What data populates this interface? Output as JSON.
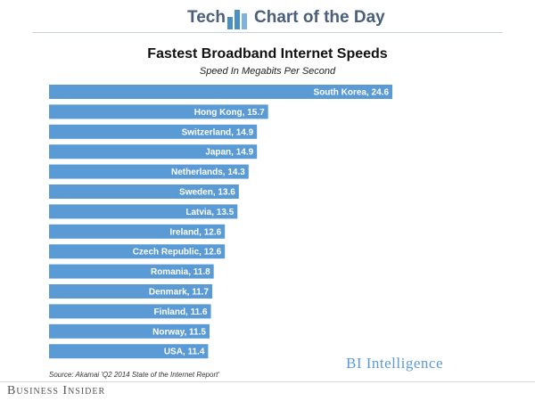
{
  "header": {
    "section": "Tech",
    "feature": "Chart of the Day",
    "accent_color": "#4a8fc4",
    "logo_icon": "bar-chart-icon"
  },
  "source_note": "Source: Akamai 'Q2 2014 State of the Internet Report'",
  "branding": {
    "bi_intelligence": "BI Intelligence",
    "business_insider": "Business Insider"
  },
  "chart_data": {
    "type": "bar",
    "orientation": "horizontal",
    "title": "Fastest Broadband Internet Speeds",
    "subtitle": "Speed In Megabits Per Second",
    "categories": [
      "South Korea",
      "Hong Kong",
      "Switzerland",
      "Japan",
      "Netherlands",
      "Sweden",
      "Latvia",
      "Ireland",
      "Czech Republic",
      "Romania",
      "Denmark",
      "Finland",
      "Norway",
      "USA"
    ],
    "values": [
      24.6,
      15.7,
      14.9,
      14.9,
      14.3,
      13.6,
      13.5,
      12.6,
      12.6,
      11.8,
      11.7,
      11.6,
      11.5,
      11.4
    ],
    "labels": [
      "South Korea, 24.6",
      "Hong Kong, 15.7",
      "Switzerland, 14.9",
      "Japan, 14.9",
      "Netherlands, 14.3",
      "Sweden, 13.6",
      "Latvia, 13.5",
      "Ireland, 12.6",
      "Czech Republic, 12.6",
      "Romania, 11.8",
      "Denmark, 11.7",
      "Finland, 11.6",
      "Norway, 11.5",
      "USA, 11.4"
    ],
    "bar_color": "#5b9bd5",
    "label_color": "#ffffff",
    "xlim": [
      0,
      24.6
    ],
    "grid": false,
    "legend": "none"
  }
}
